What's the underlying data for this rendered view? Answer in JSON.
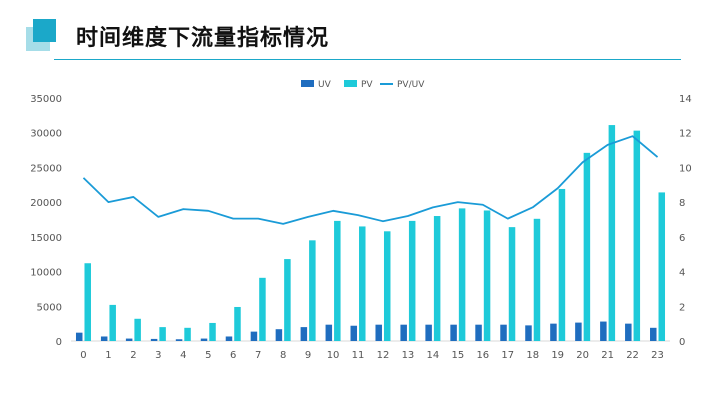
{
  "page": {
    "title": "时间维度下流量指标情况"
  },
  "colors": {
    "accent": "#1ba8c9",
    "logo_light": "#a6dde8",
    "uv": "#1f6dbf",
    "pv": "#1ecad9",
    "ratio": "#1a9bd7"
  },
  "chart_data": {
    "type": "bar",
    "categories": [
      "0",
      "1",
      "2",
      "3",
      "4",
      "5",
      "6",
      "7",
      "8",
      "9",
      "10",
      "11",
      "12",
      "13",
      "14",
      "15",
      "16",
      "17",
      "18",
      "19",
      "20",
      "21",
      "22",
      "23"
    ],
    "series": [
      {
        "name": "UV",
        "type": "bar",
        "axis": "left",
        "values": [
          1200,
          650,
          350,
          300,
          250,
          350,
          650,
          1350,
          1700,
          2000,
          2350,
          2200,
          2350,
          2350,
          2350,
          2350,
          2350,
          2350,
          2250,
          2500,
          2650,
          2800,
          2500,
          1900
        ]
      },
      {
        "name": "PV",
        "type": "bar",
        "axis": "left",
        "values": [
          11200,
          5200,
          3200,
          2000,
          1900,
          2600,
          4900,
          9100,
          11800,
          14500,
          17300,
          16500,
          15800,
          17300,
          18000,
          19100,
          18800,
          16400,
          17600,
          21900,
          27100,
          31100,
          30300,
          21400
        ]
      },
      {
        "name": "PV/UV",
        "type": "line",
        "axis": "right",
        "values": [
          9.4,
          8.0,
          8.3,
          7.15,
          7.6,
          7.5,
          7.05,
          7.05,
          6.75,
          7.15,
          7.5,
          7.25,
          6.9,
          7.2,
          7.7,
          8.0,
          7.85,
          7.05,
          7.7,
          8.8,
          10.3,
          11.3,
          11.8,
          10.6
        ]
      }
    ],
    "y_left": {
      "ticks": [
        "0",
        "5000",
        "10000",
        "15000",
        "20000",
        "25000",
        "30000",
        "35000"
      ],
      "ylim": [
        0,
        35000
      ]
    },
    "y_right": {
      "ticks": [
        "0",
        "2",
        "4",
        "6",
        "8",
        "10",
        "12",
        "14"
      ],
      "ylim": [
        0,
        14
      ]
    },
    "legend": {
      "position": "top",
      "items": [
        "UV",
        "PV",
        "PV/UV"
      ]
    },
    "grid": false,
    "title": "",
    "xlabel": "",
    "ylabel": ""
  }
}
